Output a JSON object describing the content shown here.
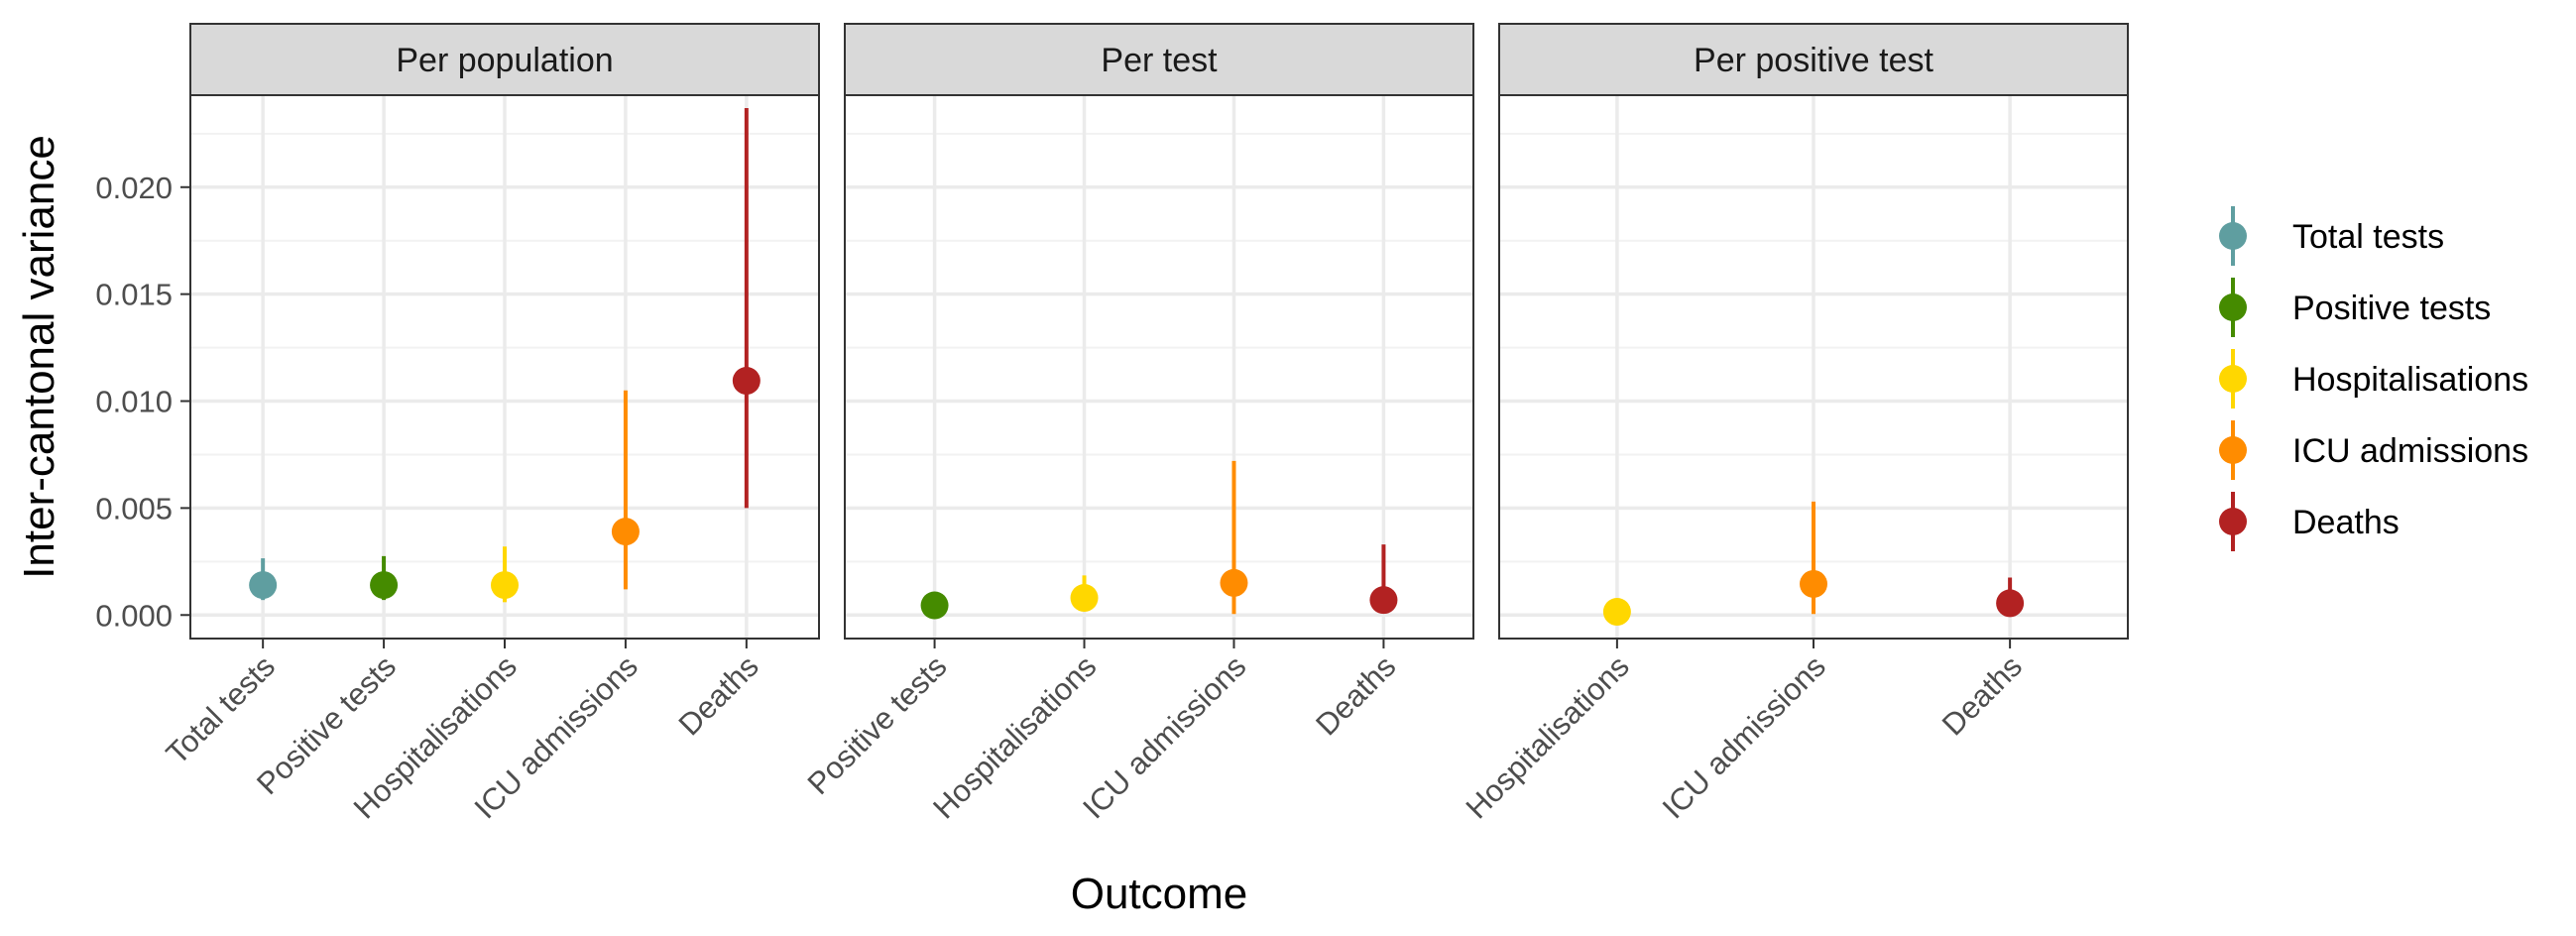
{
  "chart_data": {
    "type": "scatter",
    "subtype": "faceted point estimates with interval bars",
    "xlabel": "Outcome",
    "ylabel": "Inter-cantonal variance",
    "ylim": [
      -0.0011,
      0.0243
    ],
    "y_ticks": [
      "0.000",
      "0.005",
      "0.010",
      "0.015",
      "0.020"
    ],
    "y_tick_values": [
      0.0,
      0.005,
      0.01,
      0.015,
      0.02
    ],
    "grid": true,
    "legend_position": "right",
    "legend": [
      {
        "label": "Total tests",
        "color": "#5f9ea0"
      },
      {
        "label": "Positive tests",
        "color": "#458b00"
      },
      {
        "label": "Hospitalisations",
        "color": "#ffd700"
      },
      {
        "label": "ICU admissions",
        "color": "#ff8c00"
      },
      {
        "label": "Deaths",
        "color": "#b22222"
      }
    ],
    "panels": [
      {
        "title": "Per population",
        "categories": [
          "Total tests",
          "Positive tests",
          "Hospitalisations",
          "ICU admissions",
          "Deaths"
        ],
        "points": [
          {
            "outcome": "Total tests",
            "estimate": 0.0014,
            "lower": 0.0007,
            "upper": 0.00265
          },
          {
            "outcome": "Positive tests",
            "estimate": 0.0014,
            "lower": 0.0007,
            "upper": 0.00275
          },
          {
            "outcome": "Hospitalisations",
            "estimate": 0.0014,
            "lower": 0.0006,
            "upper": 0.0032
          },
          {
            "outcome": "ICU admissions",
            "estimate": 0.0039,
            "lower": 0.0012,
            "upper": 0.0105
          },
          {
            "outcome": "Deaths",
            "estimate": 0.01095,
            "lower": 0.005,
            "upper": 0.0237
          }
        ]
      },
      {
        "title": "Per test",
        "categories": [
          "Positive tests",
          "Hospitalisations",
          "ICU admissions",
          "Deaths"
        ],
        "points": [
          {
            "outcome": "Positive tests",
            "estimate": 0.00045,
            "lower": 0.0002,
            "upper": 0.0008
          },
          {
            "outcome": "Hospitalisations",
            "estimate": 0.0008,
            "lower": 0.0002,
            "upper": 0.00185
          },
          {
            "outcome": "ICU admissions",
            "estimate": 0.0015,
            "lower": 5e-05,
            "upper": 0.0072
          },
          {
            "outcome": "Deaths",
            "estimate": 0.0007,
            "lower": 0.00015,
            "upper": 0.0033
          }
        ]
      },
      {
        "title": "Per positive test",
        "categories": [
          "Hospitalisations",
          "ICU admissions",
          "Deaths"
        ],
        "points": [
          {
            "outcome": "Hospitalisations",
            "estimate": 0.00015,
            "lower": 3e-05,
            "upper": 0.00045
          },
          {
            "outcome": "ICU admissions",
            "estimate": 0.00145,
            "lower": 5e-05,
            "upper": 0.0053
          },
          {
            "outcome": "Deaths",
            "estimate": 0.00055,
            "lower": 0.0001,
            "upper": 0.00175
          }
        ]
      }
    ]
  }
}
